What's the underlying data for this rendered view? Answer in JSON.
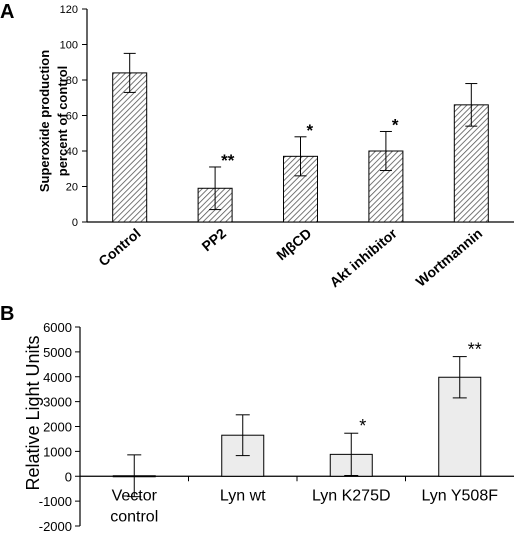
{
  "chart_data": [
    {
      "panel_label": "A",
      "type": "bar",
      "categories": [
        "Control",
        "PP2",
        "MβCD",
        "Akt inhibitor",
        "Wortmannin"
      ],
      "values": [
        84,
        19,
        37,
        40,
        66
      ],
      "errors": [
        11,
        12,
        11,
        11,
        12
      ],
      "significance": [
        "",
        "**",
        "*",
        "*",
        ""
      ],
      "ylabel": [
        "Superoxide production",
        "percent of control"
      ],
      "ylim": [
        0,
        120
      ],
      "yticks": [
        0,
        20,
        40,
        60,
        80,
        100,
        120
      ],
      "bar_fill": "hatched",
      "grid": false,
      "legend": "none"
    },
    {
      "panel_label": "B",
      "type": "bar",
      "categories": [
        [
          "Vector",
          "control"
        ],
        [
          "Lyn wt"
        ],
        [
          "Lyn K275D"
        ],
        [
          "Lyn Y508F"
        ]
      ],
      "values": [
        20,
        1650,
        880,
        3980
      ],
      "errors": [
        840,
        820,
        850,
        830
      ],
      "significance": [
        "",
        "",
        "*",
        "**"
      ],
      "ylabel": "Relative Light Units",
      "ylim": [
        -2000,
        6000
      ],
      "yticks": [
        -2000,
        -1000,
        0,
        1000,
        2000,
        3000,
        4000,
        5000,
        6000
      ],
      "bar_color": "#ececec",
      "grid": false,
      "legend": "none"
    }
  ]
}
